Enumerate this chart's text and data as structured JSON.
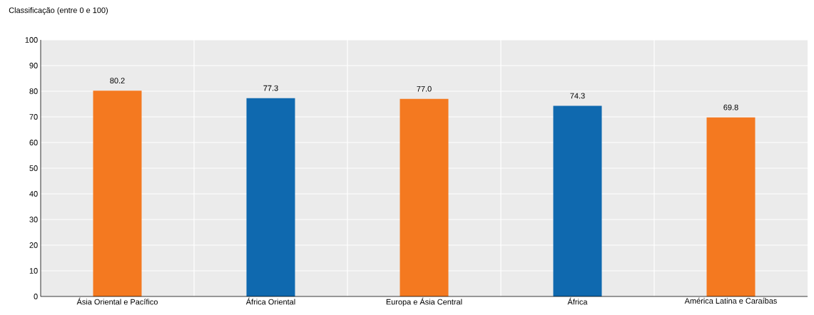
{
  "chart_data": {
    "type": "bar",
    "ylabel": "Classificação (entre 0 e 100)",
    "categories": [
      "Ásia Oriental e Pacífico",
      "África Oriental",
      "Europa e Ásia Central",
      "África",
      "América Latina e Caraíbas"
    ],
    "values": [
      80.2,
      77.3,
      77.0,
      74.3,
      69.8
    ],
    "colors": [
      "#f47920",
      "#0f69af",
      "#f47920",
      "#0f69af",
      "#f47920"
    ],
    "value_labels": [
      "80.2",
      "77.3",
      "77.0",
      "74.3",
      "69.8"
    ],
    "ylim": [
      0,
      100
    ],
    "yticks": [
      0,
      10,
      20,
      30,
      40,
      50,
      60,
      70,
      80,
      90,
      100
    ],
    "grid": "y"
  }
}
